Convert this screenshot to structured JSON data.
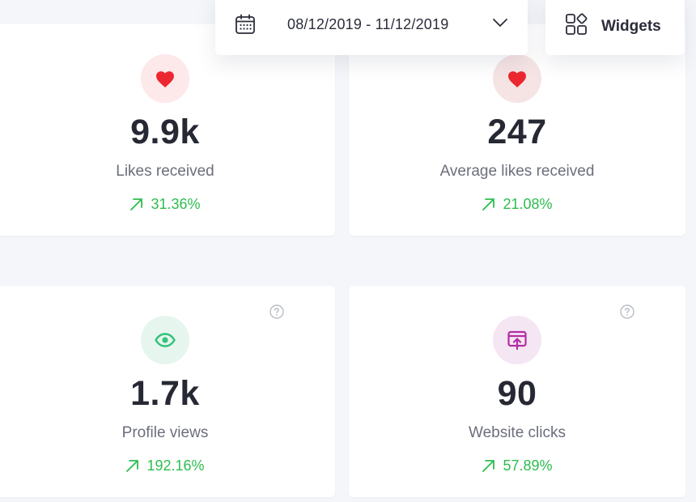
{
  "toolbar": {
    "date_range": "08/12/2019 - 11/12/2019",
    "widgets_label": "Widgets"
  },
  "colors": {
    "background": "#f4f6fa",
    "card": "#ffffff",
    "positive_change": "#2ebc4f",
    "heart": "#ec2730",
    "eye": "#33c27a",
    "click_icon": "#b42da4"
  },
  "stats": [
    {
      "id": "likes",
      "icon": "heart-icon",
      "value": "9.9k",
      "label": "Likes received",
      "change": "31.36%"
    },
    {
      "id": "avg-likes",
      "icon": "heart-icon",
      "value": "247",
      "label": "Average likes received",
      "change": "21.08%"
    },
    {
      "id": "profile-views",
      "icon": "eye-icon",
      "value": "1.7k",
      "label": "Profile views",
      "change": "192.16%",
      "has_help": true
    },
    {
      "id": "website-clicks",
      "icon": "window-upload-icon",
      "value": "90",
      "label": "Website clicks",
      "change": "57.89%",
      "has_help": true
    }
  ]
}
